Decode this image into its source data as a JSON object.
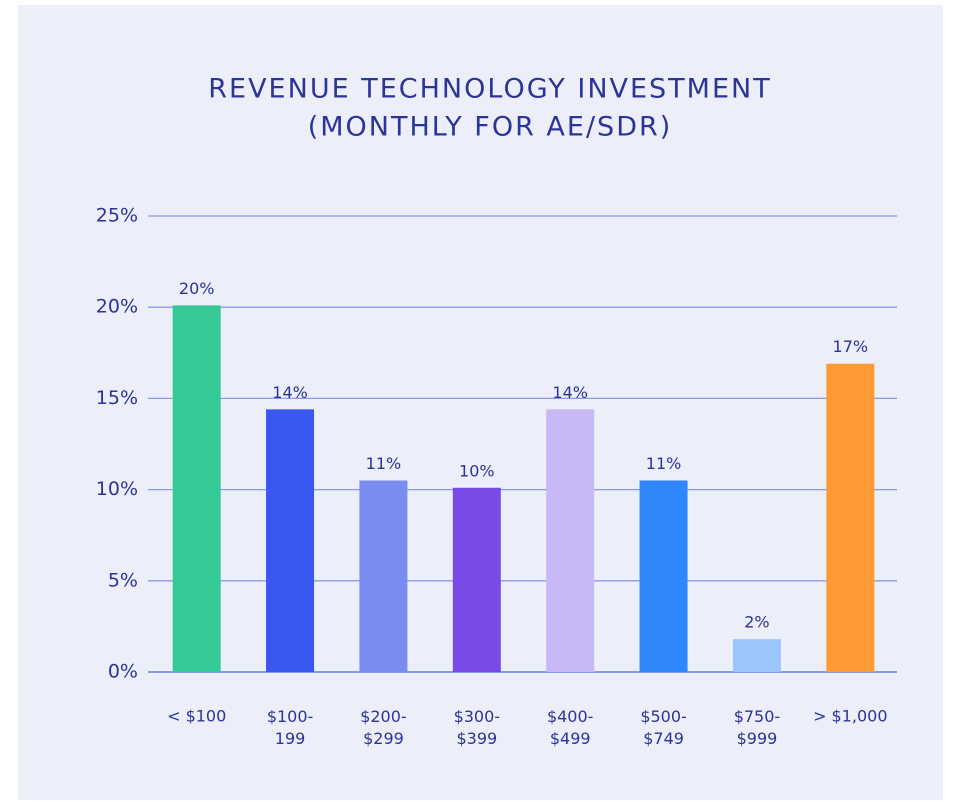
{
  "chart_data": {
    "type": "bar",
    "title": [
      "REVENUE TECHNOLOGY INVESTMENT",
      "(MONTHLY FOR AE/SDR)"
    ],
    "categories": [
      "< $100",
      "$100-199",
      "$200-$299",
      "$300-$399",
      "$400-$499",
      "$500-$749",
      "$750-$999",
      "> $1,000"
    ],
    "values": [
      20.1,
      14.4,
      10.5,
      10.1,
      14.4,
      10.5,
      1.8,
      16.9
    ],
    "value_labels": [
      "20%",
      "14%",
      "11%",
      "10%",
      "14%",
      "11%",
      "2%",
      "17%"
    ],
    "colors": [
      "#34c995",
      "#3a57f0",
      "#7b8cf0",
      "#7a4ae8",
      "#c8b8f5",
      "#2e88fc",
      "#9cc4fd",
      "#ff9a35"
    ],
    "ylim": [
      0,
      25
    ],
    "yticks": [
      {
        "value": 0,
        "label": "0%"
      },
      {
        "value": 5,
        "label": "5%"
      },
      {
        "value": 10,
        "label": "10%"
      },
      {
        "value": 15,
        "label": "15%"
      },
      {
        "value": 20,
        "label": "20%"
      },
      {
        "value": 25,
        "label": "25%"
      }
    ],
    "grid": true
  }
}
